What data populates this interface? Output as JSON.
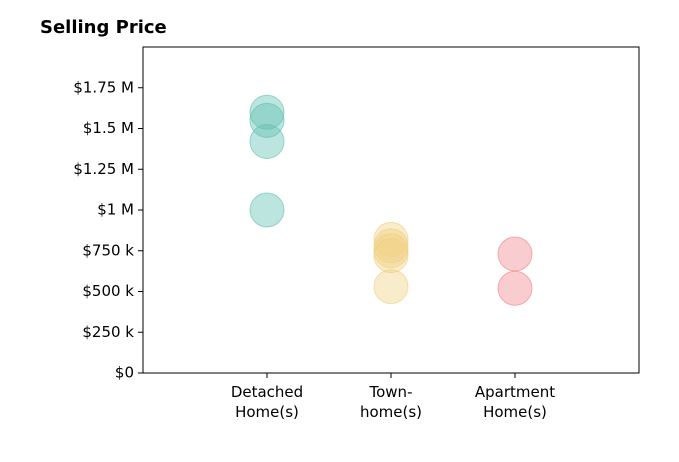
{
  "chart_data": {
    "type": "strip",
    "title": "Selling Price",
    "categories": [
      "Detached\nHome(s)",
      "Town-\nhome(s)",
      "Apartment\nHome(s)"
    ],
    "colors": [
      "#5bbfae",
      "#f0cf7c",
      "#f07f8a"
    ],
    "opacity": 0.4,
    "values": [
      [
        1600000,
        1550000,
        1420000,
        1000000
      ],
      [
        820000,
        780000,
        750000,
        720000,
        530000
      ],
      [
        730000,
        520000
      ]
    ],
    "ylim": [
      0,
      2000000
    ],
    "yticks": [
      {
        "value": 0,
        "label": "$0"
      },
      {
        "value": 250000,
        "label": "$250 k"
      },
      {
        "value": 500000,
        "label": "$500 k"
      },
      {
        "value": 750000,
        "label": "$750 k"
      },
      {
        "value": 1000000,
        "label": "$1 M"
      },
      {
        "value": 1250000,
        "label": "$1.25 M"
      },
      {
        "value": 1500000,
        "label": "$1.5 M"
      },
      {
        "value": 1750000,
        "label": "$1.75 M"
      }
    ]
  }
}
